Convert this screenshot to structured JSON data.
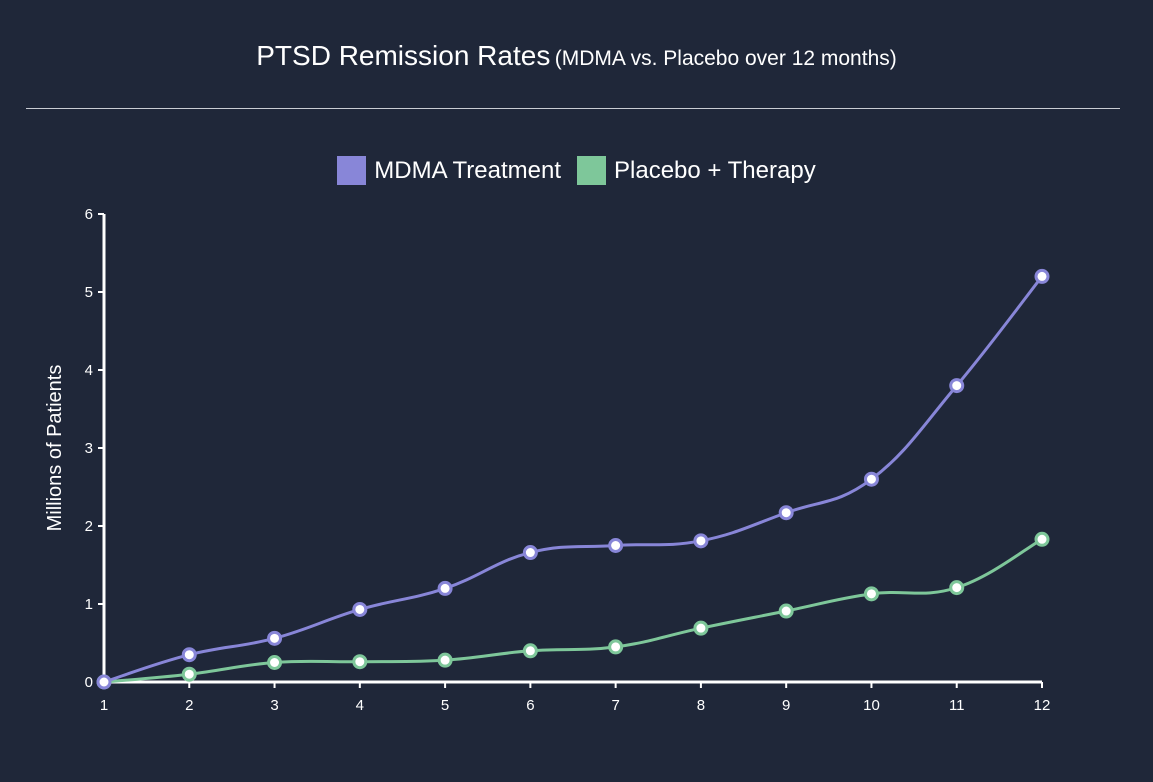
{
  "title": "PTSD Remission Rates",
  "subtitle": "(MDMA vs. Placebo over 12 months)",
  "chart_data": {
    "type": "line",
    "x": [
      1,
      2,
      3,
      4,
      5,
      6,
      7,
      8,
      9,
      10,
      11,
      12
    ],
    "xlabel": "",
    "ylabel": "Millions of Patients",
    "ylim": [
      0,
      6
    ],
    "yticks": [
      0,
      1,
      2,
      3,
      4,
      5,
      6
    ],
    "grid": false,
    "legend_position": "top-center",
    "series": [
      {
        "name": "MDMA Treatment",
        "color": "#8886d8",
        "values": [
          0,
          0.35,
          0.56,
          0.93,
          1.2,
          1.66,
          1.75,
          1.81,
          2.17,
          2.6,
          3.8,
          5.2
        ]
      },
      {
        "name": "Placebo + Therapy",
        "color": "#7ec79a",
        "values": [
          0,
          0.1,
          0.25,
          0.26,
          0.28,
          0.4,
          0.45,
          0.69,
          0.91,
          1.13,
          1.21,
          1.83
        ]
      }
    ]
  }
}
